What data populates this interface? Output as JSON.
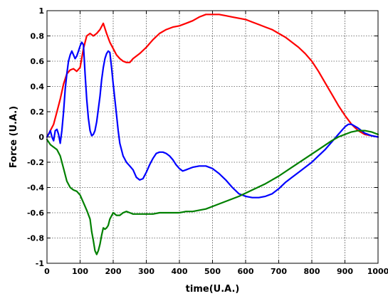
{
  "chart_data": {
    "type": "line",
    "xlabel": "time(U.A.)",
    "ylabel": "Force (U.A.)",
    "xlim": [
      0,
      1000
    ],
    "ylim": [
      -1,
      1
    ],
    "xticks": [
      0,
      100,
      200,
      300,
      400,
      500,
      600,
      700,
      800,
      900,
      1000
    ],
    "yticks": [
      -1,
      -0.8,
      -0.6,
      -0.4,
      -0.2,
      0,
      0.2,
      0.4,
      0.6,
      0.8,
      1
    ],
    "xtick_labels": [
      "0",
      "100",
      "200",
      "300",
      "400",
      "500",
      "600",
      "700",
      "800",
      "900",
      "1000"
    ],
    "ytick_labels": [
      "-1",
      "-0.8",
      "-0.6",
      "-0.4",
      "-0.2",
      "0",
      "0.2",
      "0.4",
      "0.6",
      "0.8",
      "1"
    ],
    "grid": true,
    "series": [
      {
        "color": "#ff0000",
        "x": [
          0,
          10,
          20,
          30,
          40,
          50,
          60,
          70,
          80,
          90,
          100,
          110,
          120,
          130,
          140,
          150,
          160,
          170,
          180,
          190,
          200,
          210,
          220,
          230,
          240,
          250,
          260,
          280,
          300,
          320,
          340,
          360,
          380,
          400,
          420,
          440,
          460,
          480,
          500,
          520,
          540,
          560,
          580,
          600,
          620,
          640,
          660,
          680,
          700,
          720,
          740,
          760,
          780,
          800,
          820,
          840,
          860,
          880,
          900,
          920,
          940,
          960,
          980,
          1000
        ],
        "y": [
          0.0,
          0.05,
          0.1,
          0.2,
          0.3,
          0.42,
          0.5,
          0.53,
          0.54,
          0.52,
          0.55,
          0.7,
          0.8,
          0.82,
          0.8,
          0.82,
          0.85,
          0.9,
          0.82,
          0.75,
          0.7,
          0.65,
          0.62,
          0.6,
          0.59,
          0.59,
          0.62,
          0.66,
          0.71,
          0.77,
          0.82,
          0.85,
          0.87,
          0.88,
          0.9,
          0.92,
          0.95,
          0.97,
          0.97,
          0.97,
          0.96,
          0.95,
          0.94,
          0.93,
          0.91,
          0.89,
          0.87,
          0.85,
          0.82,
          0.79,
          0.75,
          0.71,
          0.66,
          0.6,
          0.52,
          0.43,
          0.34,
          0.25,
          0.17,
          0.1,
          0.05,
          0.02,
          0.01,
          0.0
        ]
      },
      {
        "color": "#0000ff",
        "x": [
          0,
          5,
          10,
          15,
          20,
          25,
          30,
          35,
          40,
          45,
          50,
          55,
          60,
          65,
          70,
          75,
          80,
          85,
          90,
          95,
          100,
          105,
          110,
          115,
          120,
          125,
          130,
          135,
          140,
          145,
          150,
          155,
          160,
          165,
          170,
          175,
          180,
          185,
          190,
          195,
          200,
          205,
          210,
          215,
          220,
          230,
          240,
          250,
          260,
          270,
          280,
          290,
          300,
          310,
          320,
          330,
          340,
          350,
          360,
          370,
          380,
          390,
          400,
          410,
          420,
          430,
          440,
          460,
          480,
          500,
          520,
          540,
          560,
          580,
          600,
          620,
          640,
          660,
          680,
          700,
          720,
          740,
          760,
          780,
          800,
          820,
          840,
          860,
          880,
          900,
          910,
          920,
          940,
          960,
          980,
          1000
        ],
        "y": [
          0.0,
          0.02,
          0.05,
          0.0,
          -0.03,
          0.05,
          0.06,
          0.02,
          -0.05,
          0.05,
          0.2,
          0.38,
          0.5,
          0.6,
          0.65,
          0.68,
          0.65,
          0.62,
          0.64,
          0.68,
          0.72,
          0.75,
          0.73,
          0.5,
          0.3,
          0.15,
          0.05,
          0.01,
          0.02,
          0.05,
          0.12,
          0.22,
          0.32,
          0.45,
          0.55,
          0.62,
          0.66,
          0.68,
          0.67,
          0.55,
          0.42,
          0.3,
          0.18,
          0.05,
          -0.05,
          -0.15,
          -0.2,
          -0.23,
          -0.26,
          -0.32,
          -0.34,
          -0.33,
          -0.28,
          -0.22,
          -0.17,
          -0.13,
          -0.12,
          -0.12,
          -0.13,
          -0.15,
          -0.18,
          -0.22,
          -0.25,
          -0.27,
          -0.26,
          -0.25,
          -0.24,
          -0.23,
          -0.23,
          -0.25,
          -0.29,
          -0.34,
          -0.4,
          -0.45,
          -0.47,
          -0.48,
          -0.48,
          -0.47,
          -0.45,
          -0.41,
          -0.36,
          -0.32,
          -0.28,
          -0.24,
          -0.2,
          -0.15,
          -0.1,
          -0.04,
          0.02,
          0.08,
          0.1,
          0.1,
          0.07,
          0.03,
          0.01,
          0.0
        ]
      },
      {
        "color": "#008000",
        "x": [
          0,
          10,
          20,
          30,
          40,
          50,
          60,
          70,
          80,
          90,
          100,
          110,
          120,
          130,
          135,
          140,
          145,
          150,
          155,
          160,
          165,
          170,
          175,
          180,
          185,
          190,
          200,
          210,
          220,
          230,
          240,
          250,
          260,
          280,
          300,
          320,
          340,
          360,
          380,
          400,
          420,
          440,
          460,
          480,
          500,
          540,
          580,
          620,
          660,
          700,
          740,
          780,
          820,
          860,
          880,
          900,
          920,
          940,
          960,
          980,
          1000
        ],
        "y": [
          -0.02,
          -0.06,
          -0.08,
          -0.1,
          -0.15,
          -0.25,
          -0.35,
          -0.4,
          -0.42,
          -0.43,
          -0.46,
          -0.52,
          -0.58,
          -0.65,
          -0.75,
          -0.82,
          -0.9,
          -0.93,
          -0.9,
          -0.85,
          -0.78,
          -0.72,
          -0.73,
          -0.72,
          -0.7,
          -0.65,
          -0.6,
          -0.62,
          -0.62,
          -0.6,
          -0.59,
          -0.6,
          -0.61,
          -0.61,
          -0.61,
          -0.61,
          -0.6,
          -0.6,
          -0.6,
          -0.6,
          -0.59,
          -0.59,
          -0.58,
          -0.57,
          -0.55,
          -0.51,
          -0.47,
          -0.42,
          -0.37,
          -0.31,
          -0.24,
          -0.17,
          -0.1,
          -0.03,
          0.0,
          0.02,
          0.04,
          0.05,
          0.05,
          0.04,
          0.02
        ]
      }
    ]
  }
}
